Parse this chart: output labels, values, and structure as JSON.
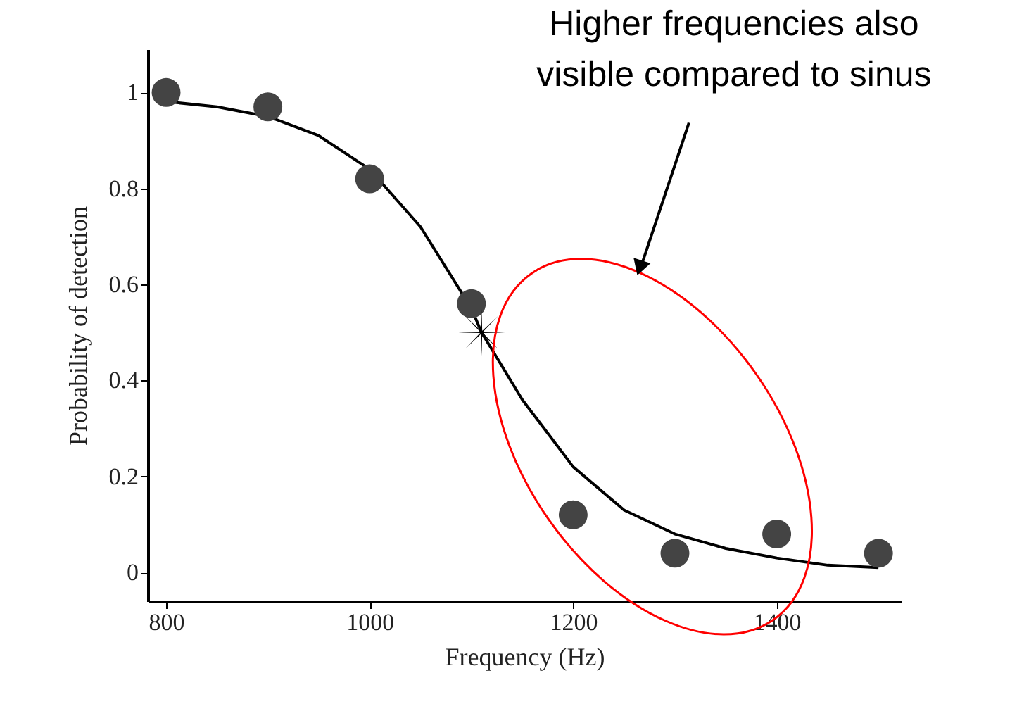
{
  "chart_data": {
    "type": "scatter",
    "xlabel": "Frequency (Hz)",
    "ylabel": "Probability of detection",
    "xlim": [
      782,
      1522
    ],
    "ylim": [
      -0.06,
      1.09
    ],
    "xticks": [
      800,
      1000,
      1200,
      1400
    ],
    "yticks": [
      0,
      0.2,
      0.4,
      0.6,
      0.8,
      1
    ],
    "grid": false,
    "series": [
      {
        "type": "line",
        "color": "#000000",
        "marker": "none",
        "line_style": "solid",
        "x": [
          805,
          850,
          900,
          950,
          1000,
          1050,
          1100,
          1110,
          1150,
          1200,
          1250,
          1300,
          1350,
          1400,
          1450,
          1500
        ],
        "values": [
          0.98,
          0.97,
          0.95,
          0.91,
          0.84,
          0.72,
          0.55,
          0.5,
          0.36,
          0.22,
          0.13,
          0.08,
          0.05,
          0.03,
          0.015,
          0.01
        ]
      },
      {
        "type": "scatter",
        "color": "#444444",
        "marker": "circle",
        "x": [
          800,
          900,
          1000,
          1100,
          1200,
          1300,
          1400,
          1500
        ],
        "values": [
          1.0,
          0.97,
          0.82,
          0.56,
          0.12,
          0.04,
          0.08,
          0.04
        ]
      },
      {
        "type": "scatter",
        "color": "#000000",
        "marker": "cross",
        "x": [
          1110
        ],
        "values": [
          0.5
        ]
      }
    ],
    "annotations": [
      "Higher frequencies also\nvisible compared to sinus"
    ]
  }
}
